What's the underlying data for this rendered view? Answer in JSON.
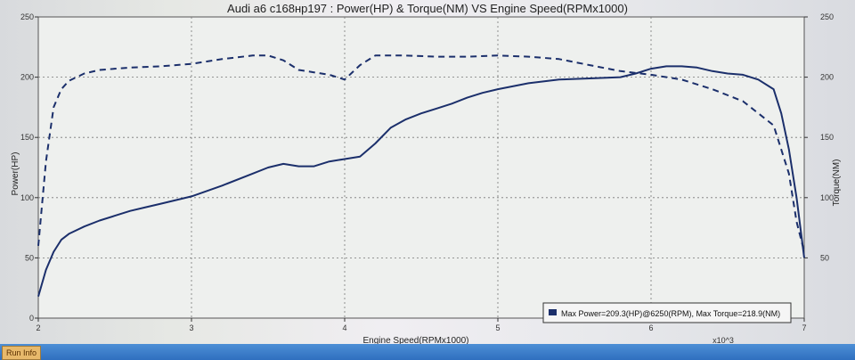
{
  "taskbar": {
    "run_info_label": "Run Info"
  },
  "chart_data": {
    "type": "line",
    "title": "Audi a6 c168нр197 : Power(HP) & Torque(NM) VS Engine Speed(RPMx1000)",
    "xlabel": "Engine Speed(RPMx1000)",
    "x_multiplier_label": "x10^3",
    "ylabel_left": "Power(HP)",
    "ylabel_right": "Torque(NM)",
    "xlim": [
      2,
      7
    ],
    "ylim_left": [
      0,
      250
    ],
    "ylim_right": [
      0,
      250
    ],
    "x_ticks": [
      "2",
      "3",
      "4",
      "5",
      "6",
      "7"
    ],
    "y_ticks_left": [
      "0",
      "50",
      "100",
      "150",
      "200",
      "250"
    ],
    "y_ticks_right": [
      "50",
      "100",
      "150",
      "200",
      "250"
    ],
    "grid": true,
    "legend_position": "bottom-right",
    "legend_text": "Max Power=209.3(HP)@6250(RPM), Max Torque=218.9(NM)",
    "colors": {
      "power": "#1b2f6b",
      "torque": "#1b2f6b",
      "legend_swatch": "#1b2f6b"
    },
    "series": [
      {
        "id": "power",
        "axis": "left",
        "style": "solid",
        "x": [
          2.0,
          2.05,
          2.1,
          2.15,
          2.2,
          2.3,
          2.4,
          2.5,
          2.6,
          2.7,
          2.8,
          2.9,
          3.0,
          3.2,
          3.4,
          3.5,
          3.6,
          3.7,
          3.8,
          3.9,
          4.0,
          4.1,
          4.2,
          4.3,
          4.4,
          4.5,
          4.6,
          4.7,
          4.8,
          4.9,
          5.0,
          5.2,
          5.4,
          5.6,
          5.8,
          5.9,
          6.0,
          6.1,
          6.2,
          6.3,
          6.4,
          6.5,
          6.6,
          6.7,
          6.8,
          6.85,
          6.9,
          6.95,
          7.0
        ],
        "y": [
          18,
          40,
          55,
          65,
          70,
          76,
          81,
          85,
          89,
          92,
          95,
          98,
          101,
          110,
          120,
          125,
          128,
          126,
          126,
          130,
          132,
          134,
          145,
          158,
          165,
          170,
          174,
          178,
          183,
          187,
          190,
          195,
          198,
          199,
          200,
          203,
          207,
          209,
          209,
          208,
          205,
          203,
          202,
          198,
          190,
          170,
          140,
          100,
          50
        ]
      },
      {
        "id": "torque",
        "axis": "right",
        "style": "dashed",
        "x": [
          2.0,
          2.05,
          2.1,
          2.15,
          2.2,
          2.3,
          2.4,
          2.6,
          2.8,
          3.0,
          3.2,
          3.4,
          3.5,
          3.6,
          3.7,
          3.8,
          3.9,
          4.0,
          4.1,
          4.2,
          4.3,
          4.4,
          4.6,
          4.8,
          5.0,
          5.2,
          5.4,
          5.6,
          5.8,
          6.0,
          6.2,
          6.4,
          6.6,
          6.8,
          6.9,
          6.95,
          7.0
        ],
        "y": [
          60,
          130,
          175,
          190,
          197,
          203,
          206,
          208,
          209,
          211,
          215,
          218,
          218,
          214,
          206,
          204,
          202,
          198,
          210,
          218,
          218,
          218,
          217,
          217,
          218,
          217,
          215,
          210,
          205,
          202,
          198,
          190,
          180,
          160,
          120,
          80,
          55
        ]
      }
    ]
  }
}
